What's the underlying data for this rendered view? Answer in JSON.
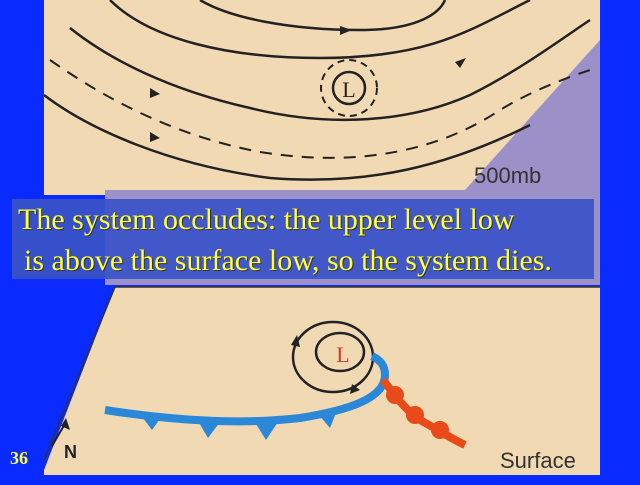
{
  "upper_map": {
    "level_label": "500mb",
    "low_label": "L"
  },
  "surface_map": {
    "level_label": "Surface",
    "low_label": "L",
    "north_label": "N"
  },
  "caption": {
    "line1": "The system occludes: the upper level low",
    "line2": "is above the surface low, so the system dies."
  },
  "slide": {
    "number": "36"
  },
  "colors": {
    "background": "#0a2bff",
    "map_paper": "#f1d9b3",
    "shadow": "#9b90c8",
    "cold_front": "#2b88d8",
    "warm_front": "#e84a1a",
    "caption_text": "#ffff3a",
    "surface_low": "#d43a2a"
  },
  "icons": {
    "north_arrow": "north-arrow-icon"
  }
}
